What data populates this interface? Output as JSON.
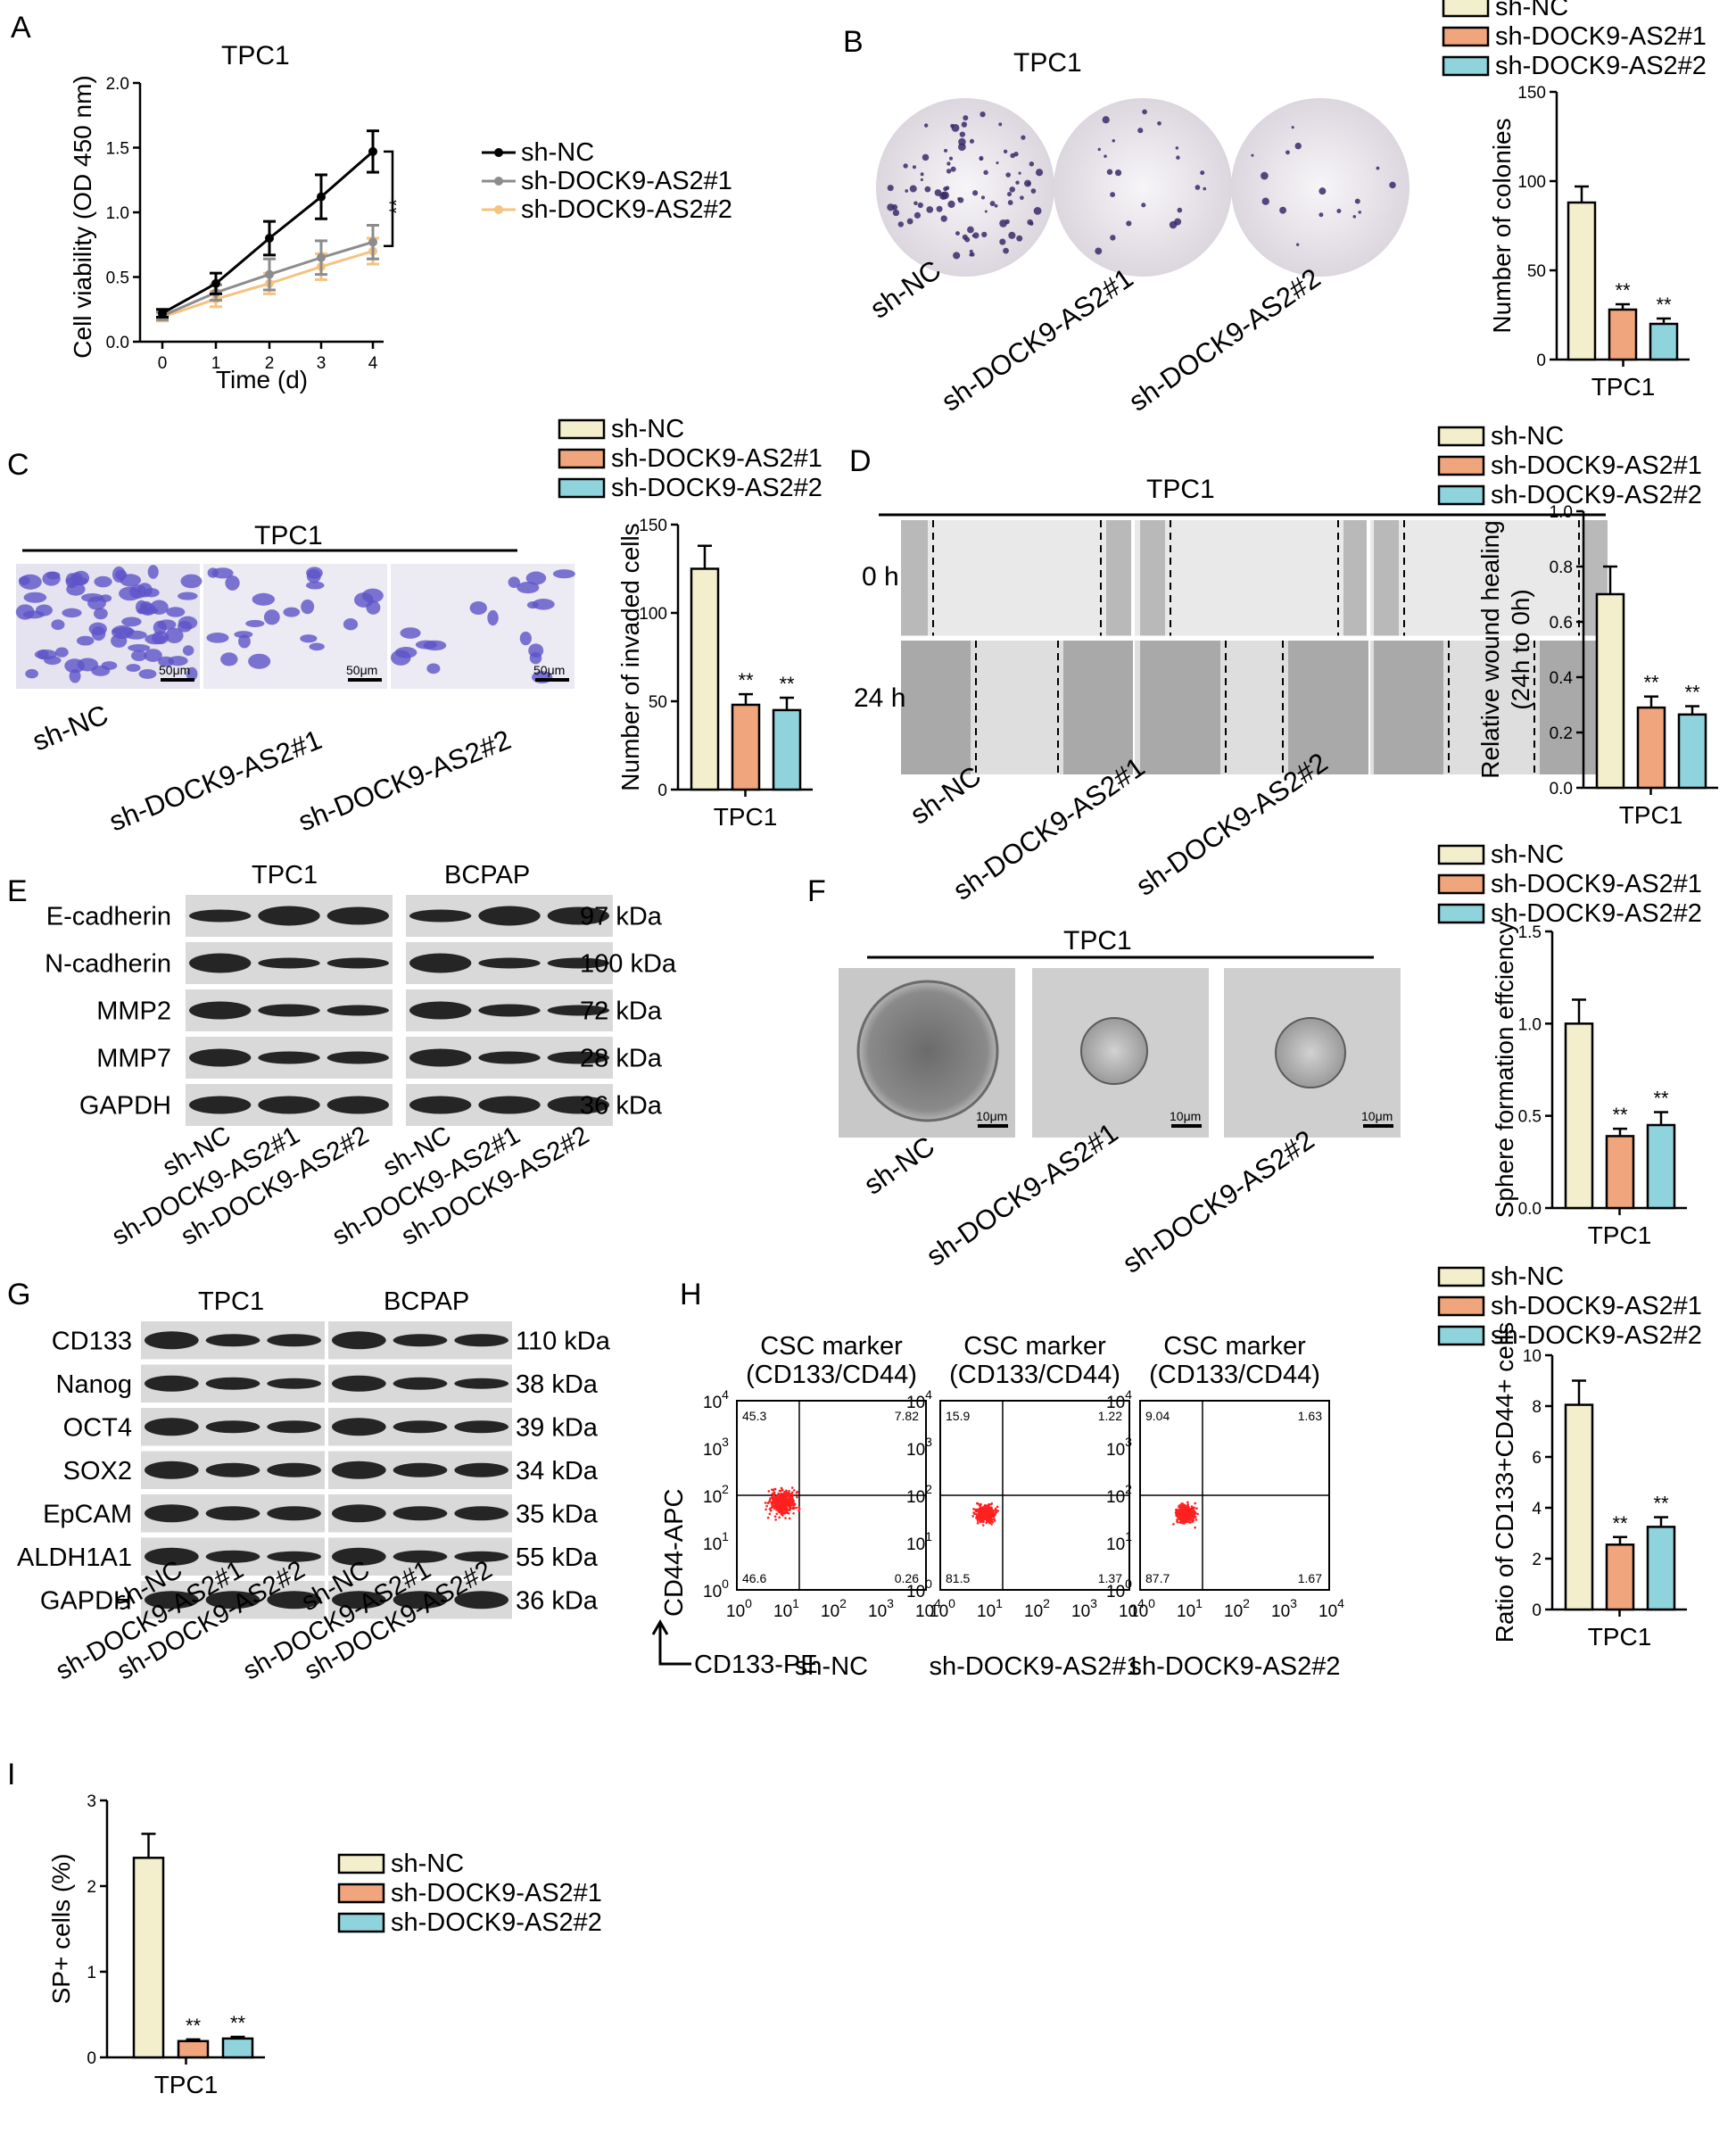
{
  "panels": {
    "A": {
      "letter": "A",
      "title": "TPC1"
    },
    "B": {
      "letter": "B",
      "title": "TPC1",
      "images": [
        "sh-NC",
        "sh-DOCK9-AS2#1",
        "sh-DOCK9-AS2#2"
      ]
    },
    "C": {
      "letter": "C",
      "title": "TPC1",
      "images": [
        "sh-NC",
        "sh-DOCK9-AS2#1",
        "sh-DOCK9-AS2#2"
      ],
      "scale": "50μm"
    },
    "D": {
      "letter": "D",
      "title": "TPC1",
      "rows": [
        "0 h",
        "24 h"
      ],
      "images": [
        "sh-NC",
        "sh-DOCK9-AS2#1",
        "sh-DOCK9-AS2#2"
      ]
    },
    "E": {
      "letter": "E",
      "groups": [
        "TPC1",
        "BCPAP"
      ],
      "proteins": [
        "E-cadherin",
        "N-cadherin",
        "MMP2",
        "MMP7",
        "GAPDH"
      ],
      "sizes": [
        "97 kDa",
        "100 kDa",
        "72 kDa",
        "28 kDa",
        "36 kDa"
      ],
      "lanes": [
        "sh-NC",
        "sh-DOCK9-AS2#1",
        "sh-DOCK9-AS2#2",
        "sh-NC",
        "sh-DOCK9-AS2#1",
        "sh-DOCK9-AS2#2"
      ]
    },
    "F": {
      "letter": "F",
      "title": "TPC1",
      "images": [
        "sh-NC",
        "sh-DOCK9-AS2#1",
        "sh-DOCK9-AS2#2"
      ],
      "scale": "10μm"
    },
    "G": {
      "letter": "G",
      "groups": [
        "TPC1",
        "BCPAP"
      ],
      "proteins": [
        "CD133",
        "Nanog",
        "OCT4",
        "SOX2",
        "EpCAM",
        "ALDH1A1",
        "GAPDH"
      ],
      "sizes": [
        "110 kDa",
        "38 kDa",
        "39 kDa",
        "34 kDa",
        "35 kDa",
        "55 kDa",
        "36 kDa"
      ],
      "lanes": [
        "sh-NC",
        "sh-DOCK9-AS2#1",
        "sh-DOCK9-AS2#2",
        "sh-NC",
        "sh-DOCK9-AS2#1",
        "sh-DOCK9-AS2#2"
      ]
    },
    "H": {
      "letter": "H",
      "title_line1": "CSC  marker",
      "title_line2": "(CD133/CD44)",
      "xlabel": "CD133-PE",
      "ylabel": "CD44-APC",
      "plots": [
        {
          "name": "sh-NC",
          "q": [
            "45.3",
            "7.82",
            "46.6",
            "0.26"
          ]
        },
        {
          "name": "sh-DOCK9-AS2#1",
          "q": [
            "15.9",
            "1.22",
            "81.5",
            "1.37"
          ]
        },
        {
          "name": "sh-DOCK9-AS2#2",
          "q": [
            "9.04",
            "1.63",
            "87.7",
            "1.67"
          ]
        }
      ]
    },
    "I": {
      "letter": "I"
    }
  },
  "colors": {
    "shNC": "#f3efcd",
    "sh1": "#f0a57c",
    "sh2": "#8fd3dc",
    "line_shNC": "#000000",
    "line_sh1": "#8c8c8c",
    "line_sh2": "#f5c27f",
    "dots": "#ff2020"
  },
  "chart_data": [
    {
      "id": "A",
      "type": "line",
      "title": "TPC1",
      "xlabel": "Time (d)",
      "ylabel": "Cell viability (OD 450 nm)",
      "x": [
        0,
        1,
        2,
        3,
        4
      ],
      "xlim": [
        0,
        4
      ],
      "ylim": [
        0,
        2.0
      ],
      "yticks": [
        "0.0",
        "0.5",
        "1.0",
        "1.5",
        "2.0"
      ],
      "xticks": [
        "0",
        "1",
        "2",
        "3",
        "4"
      ],
      "legend_position": "right",
      "series": [
        {
          "name": "sh-NC",
          "values": [
            0.22,
            0.45,
            0.8,
            1.12,
            1.47
          ],
          "err": [
            0.03,
            0.08,
            0.13,
            0.17,
            0.16
          ]
        },
        {
          "name": "sh-DOCK9-AS2#1",
          "values": [
            0.2,
            0.38,
            0.52,
            0.65,
            0.77
          ],
          "err": [
            0.03,
            0.06,
            0.12,
            0.13,
            0.13
          ]
        },
        {
          "name": "sh-DOCK9-AS2#2",
          "values": [
            0.19,
            0.33,
            0.45,
            0.58,
            0.7
          ],
          "err": [
            0.03,
            0.06,
            0.08,
            0.1,
            0.1
          ]
        }
      ],
      "annotation": "**"
    },
    {
      "id": "B",
      "type": "bar",
      "ylabel": "Number of colonies",
      "xlabel": "TPC1",
      "ylim": [
        0,
        150
      ],
      "yticks": [
        "0",
        "50",
        "100",
        "150"
      ],
      "categories": [
        "sh-NC",
        "sh-DOCK9-AS2#1",
        "sh-DOCK9-AS2#2"
      ],
      "values": [
        88,
        28,
        20
      ],
      "err": [
        9,
        3,
        3
      ],
      "sig": [
        "",
        "**",
        "**"
      ]
    },
    {
      "id": "C",
      "type": "bar",
      "ylabel": "Number of invaded cells",
      "xlabel": "TPC1",
      "ylim": [
        0,
        150
      ],
      "yticks": [
        "0",
        "50",
        "100",
        "150"
      ],
      "categories": [
        "sh-NC",
        "sh-DOCK9-AS2#1",
        "sh-DOCK9-AS2#2"
      ],
      "values": [
        125,
        48,
        45
      ],
      "err": [
        13,
        6,
        7
      ],
      "sig": [
        "",
        "**",
        "**"
      ]
    },
    {
      "id": "D",
      "type": "bar",
      "ylabel": "Relative wound healing",
      "ylabel2": "(24h to 0h)",
      "xlabel": "TPC1",
      "ylim": [
        0,
        1.0
      ],
      "yticks": [
        "0.0",
        "0.2",
        "0.4",
        "0.6",
        "0.8",
        "1.0"
      ],
      "categories": [
        "sh-NC",
        "sh-DOCK9-AS2#1",
        "sh-DOCK9-AS2#2"
      ],
      "values": [
        0.7,
        0.29,
        0.265
      ],
      "err": [
        0.1,
        0.04,
        0.03
      ],
      "sig": [
        "",
        "**",
        "**"
      ]
    },
    {
      "id": "F",
      "type": "bar",
      "ylabel": "Sphere formation effciency",
      "xlabel": "TPC1",
      "ylim": [
        0,
        1.5
      ],
      "yticks": [
        "0.0",
        "0.5",
        "1.0",
        "1.5"
      ],
      "categories": [
        "sh-NC",
        "sh-DOCK9-AS2#1",
        "sh-DOCK9-AS2#2"
      ],
      "values": [
        1.0,
        0.39,
        0.45
      ],
      "err": [
        0.13,
        0.04,
        0.07
      ],
      "sig": [
        "",
        "**",
        "**"
      ]
    },
    {
      "id": "H",
      "type": "bar",
      "ylabel": "Ratio of CD133+CD44+ cells",
      "xlabel": "TPC1",
      "ylim": [
        0,
        10
      ],
      "yticks": [
        "0",
        "2",
        "4",
        "6",
        "8",
        "10"
      ],
      "categories": [
        "sh-NC",
        "sh-DOCK9-AS2#1",
        "sh-DOCK9-AS2#2"
      ],
      "values": [
        8.05,
        2.55,
        3.25
      ],
      "err": [
        0.95,
        0.3,
        0.38
      ],
      "sig": [
        "",
        "**",
        "**"
      ]
    },
    {
      "id": "I",
      "type": "bar",
      "ylabel": "SP+ cells (%)",
      "xlabel": "TPC1",
      "ylim": [
        0,
        3
      ],
      "yticks": [
        "0",
        "1",
        "2",
        "3"
      ],
      "categories": [
        "sh-NC",
        "sh-DOCK9-AS2#1",
        "sh-DOCK9-AS2#2"
      ],
      "values": [
        2.33,
        0.19,
        0.22
      ],
      "err": [
        0.28,
        0.02,
        0.02
      ],
      "sig": [
        "",
        "**",
        "**"
      ]
    }
  ],
  "legend": [
    "sh-NC",
    "sh-DOCK9-AS2#1",
    "sh-DOCK9-AS2#2"
  ]
}
